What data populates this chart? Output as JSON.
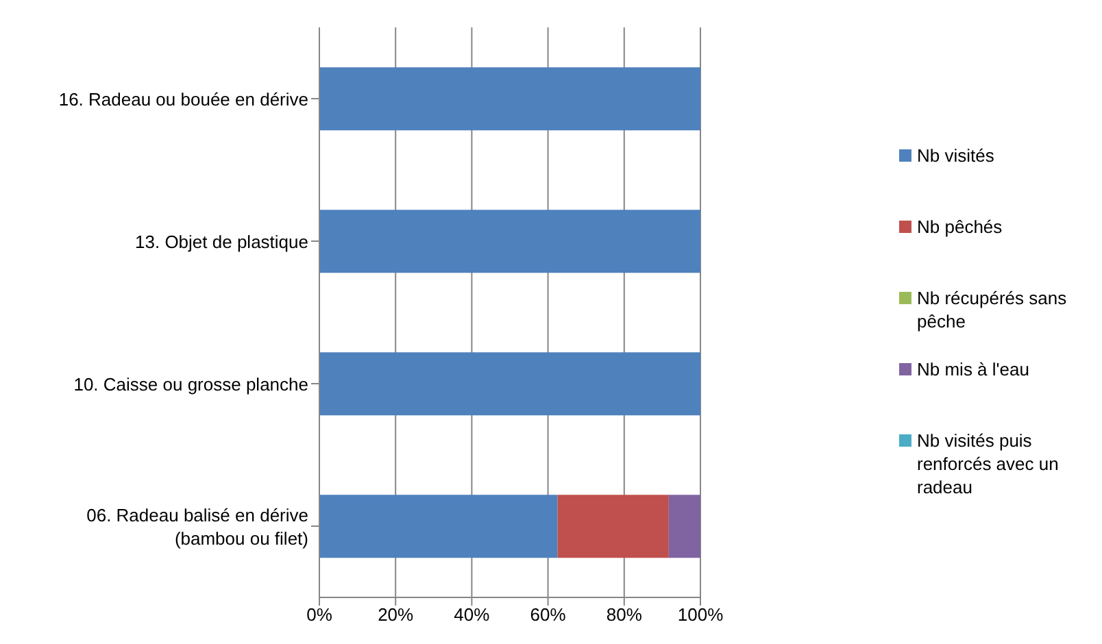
{
  "chart_data": {
    "type": "bar",
    "orientation": "horizontal",
    "stacked": true,
    "categories": [
      "16. Radeau ou bouée en dérive",
      "13. Objet de plastique ",
      "10. Caisse ou grosse planche",
      "06. Radeau balisé en dérive (bambou ou filet)"
    ],
    "series": [
      {
        "name": "Nb visités",
        "color": "#4f81bd",
        "values": [
          100,
          100,
          100,
          62.5
        ]
      },
      {
        "name": "Nb pêchés",
        "color": "#c0504d",
        "values": [
          0,
          0,
          0,
          29.2
        ]
      },
      {
        "name": "Nb récupérés sans pêche",
        "color": "#9bbb59",
        "values": [
          0,
          0,
          0,
          0
        ]
      },
      {
        "name": "Nb mis à l'eau",
        "color": "#8064a2",
        "values": [
          0,
          0,
          0,
          8.3
        ]
      },
      {
        "name": "Nb visités puis renforcés avec un radeau",
        "color": "#4bacc6",
        "values": [
          0,
          0,
          0,
          0
        ]
      }
    ],
    "xlim": [
      0,
      100
    ],
    "xticks": [
      {
        "value": 0,
        "label": "0%"
      },
      {
        "value": 20,
        "label": "20%"
      },
      {
        "value": 40,
        "label": "40%"
      },
      {
        "value": 60,
        "label": "60%"
      },
      {
        "value": 80,
        "label": "80%"
      },
      {
        "value": 100,
        "label": "100%"
      }
    ],
    "grid": "x",
    "legend": "right"
  }
}
